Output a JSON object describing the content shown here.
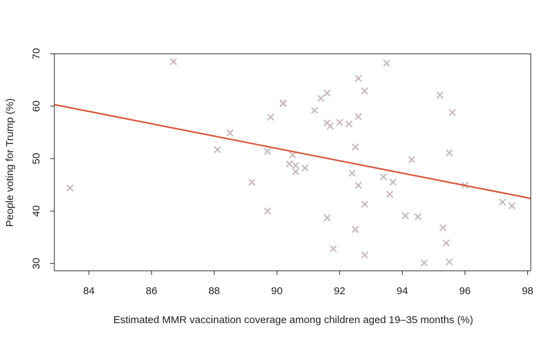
{
  "chart_data": {
    "type": "scatter",
    "title": "",
    "xlabel": "Estimated MMR vaccination coverage among children aged 19–35 months (%)",
    "ylabel": "People voting for Trump (%)",
    "xlim": [
      82.9,
      98.1
    ],
    "ylim": [
      28.6,
      70.0
    ],
    "xticks": [
      "84",
      "86",
      "88",
      "90",
      "92",
      "94",
      "96",
      "98"
    ],
    "yticks": [
      "30",
      "40",
      "50",
      "60",
      "70"
    ],
    "grid": false,
    "marker": "x",
    "point_color": "#c8b8b8",
    "fit_line_color": "#d9543a",
    "points": [
      {
        "x": 83.4,
        "y": 44.4
      },
      {
        "x": 86.7,
        "y": 68.5
      },
      {
        "x": 88.1,
        "y": 51.7
      },
      {
        "x": 88.5,
        "y": 54.9
      },
      {
        "x": 89.2,
        "y": 45.5
      },
      {
        "x": 89.7,
        "y": 51.4
      },
      {
        "x": 89.7,
        "y": 40.0
      },
      {
        "x": 89.8,
        "y": 57.9
      },
      {
        "x": 90.2,
        "y": 60.6
      },
      {
        "x": 90.2,
        "y": 60.5
      },
      {
        "x": 90.4,
        "y": 49.0
      },
      {
        "x": 90.5,
        "y": 50.7
      },
      {
        "x": 90.6,
        "y": 48.7
      },
      {
        "x": 90.6,
        "y": 47.5
      },
      {
        "x": 90.9,
        "y": 48.2
      },
      {
        "x": 91.2,
        "y": 59.2
      },
      {
        "x": 91.4,
        "y": 61.5
      },
      {
        "x": 91.6,
        "y": 62.5
      },
      {
        "x": 91.6,
        "y": 56.8
      },
      {
        "x": 91.6,
        "y": 38.7
      },
      {
        "x": 91.7,
        "y": 56.2
      },
      {
        "x": 91.8,
        "y": 32.8
      },
      {
        "x": 92.0,
        "y": 56.9
      },
      {
        "x": 92.3,
        "y": 56.6
      },
      {
        "x": 92.4,
        "y": 47.2
      },
      {
        "x": 92.5,
        "y": 52.2
      },
      {
        "x": 92.5,
        "y": 36.5
      },
      {
        "x": 92.6,
        "y": 65.3
      },
      {
        "x": 92.6,
        "y": 58.0
      },
      {
        "x": 92.6,
        "y": 44.9
      },
      {
        "x": 92.8,
        "y": 62.9
      },
      {
        "x": 92.8,
        "y": 41.3
      },
      {
        "x": 92.8,
        "y": 31.6
      },
      {
        "x": 93.4,
        "y": 46.5
      },
      {
        "x": 93.5,
        "y": 68.2
      },
      {
        "x": 93.6,
        "y": 43.2
      },
      {
        "x": 93.7,
        "y": 45.5
      },
      {
        "x": 94.1,
        "y": 39.1
      },
      {
        "x": 94.3,
        "y": 49.8
      },
      {
        "x": 94.5,
        "y": 38.9
      },
      {
        "x": 94.7,
        "y": 30.1
      },
      {
        "x": 95.2,
        "y": 62.1
      },
      {
        "x": 95.3,
        "y": 36.8
      },
      {
        "x": 95.4,
        "y": 33.9
      },
      {
        "x": 95.5,
        "y": 30.3
      },
      {
        "x": 95.5,
        "y": 51.1
      },
      {
        "x": 95.6,
        "y": 58.8
      },
      {
        "x": 96.0,
        "y": 44.9
      },
      {
        "x": 97.2,
        "y": 41.7
      },
      {
        "x": 97.5,
        "y": 41.0
      }
    ],
    "fit_line": {
      "x": [
        82.9,
        98.1
      ],
      "y": [
        60.3,
        42.4
      ]
    }
  }
}
